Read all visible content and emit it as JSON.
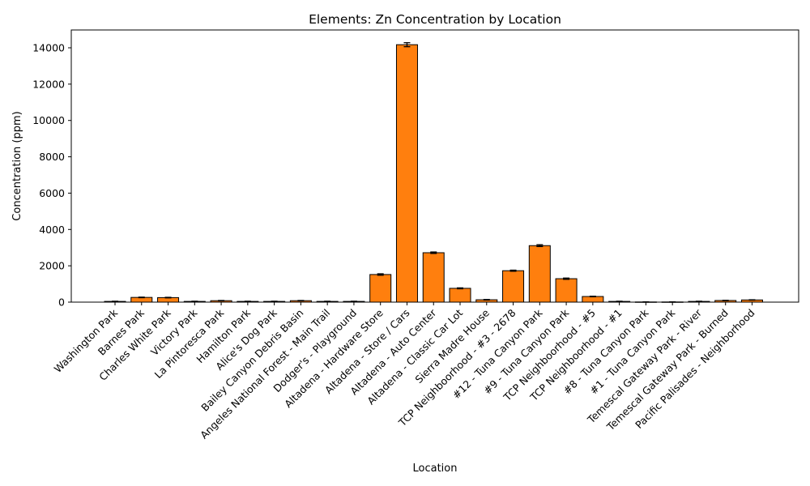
{
  "chart_data": {
    "type": "bar",
    "title": "Elements: Zn Concentration by Location",
    "xlabel": "Location",
    "ylabel": "Concentration (ppm)",
    "ylim": [
      0,
      15000
    ],
    "yticks": [
      0,
      2000,
      4000,
      6000,
      8000,
      10000,
      12000,
      14000
    ],
    "grid": false,
    "bar_color": "#ff7f0e",
    "categories": [
      "Washington Park",
      "Barnes Park",
      "Charles White Park",
      "Victory Park",
      "La Pintoresca Park",
      "Hamilton Park",
      "Alice's Dog Park",
      "Bailey Canyon Debris Basin",
      "Angeles National Forest - Main Trail",
      "Dodger's - Playground",
      "Altadena - Hardware Store",
      "Altadena - Store / Cars",
      "Altadena - Auto Center",
      "Altadena - Classic Car Lot",
      "Sierra Madre House",
      "TCP Neighboorhood - #3 - 2678",
      "#12 - Tuna Canyon Park",
      "#9 - Tuna Canyon Park",
      "TCP Neighboorhood - #5",
      "TCP Neighboorhood - #1",
      "#8 - Tuna Canyon Park",
      "#1 - Tuna Canyon Park",
      "Temescal Gateway Park - River",
      "Temescal Gateway Park - Burned",
      "Pacific Palisades - Neighborhood"
    ],
    "values": [
      40,
      260,
      250,
      40,
      80,
      40,
      40,
      80,
      40,
      40,
      1520,
      14170,
      2720,
      760,
      130,
      1730,
      3110,
      1290,
      310,
      40,
      10,
      10,
      40,
      90,
      120
    ],
    "errors": [
      10,
      15,
      15,
      10,
      10,
      10,
      10,
      10,
      10,
      10,
      40,
      110,
      40,
      25,
      15,
      30,
      50,
      35,
      15,
      10,
      5,
      5,
      10,
      10,
      10
    ]
  }
}
